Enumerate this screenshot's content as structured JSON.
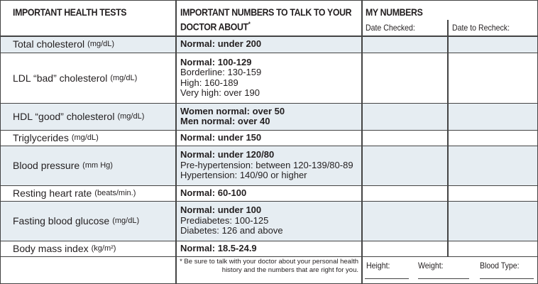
{
  "header": {
    "col1": "IMPORTANT HEALTH TESTS",
    "col2": "IMPORTANT NUMBERS TO TALK TO YOUR DOCTOR ABOUT",
    "col2_marker": "*",
    "col3": "MY NUMBERS",
    "date_checked": "Date Checked:",
    "date_recheck": "Date to Recheck:"
  },
  "table": {
    "rows": [
      {
        "test": "Total cholesterol",
        "unit": "(mg/dL)",
        "bold": [
          "Normal: under 200"
        ],
        "plain": []
      },
      {
        "test": "LDL “bad” cholesterol",
        "unit": "(mg/dL)",
        "bold": [
          "Normal: 100-129"
        ],
        "plain": [
          "Borderline: 130-159",
          "High: 160-189",
          "Very high: over 190"
        ]
      },
      {
        "test": "HDL “good” cholesterol",
        "unit": "(mg/dL)",
        "bold": [
          "Women normal: over 50",
          "Men normal: over 40"
        ],
        "plain": []
      },
      {
        "test": "Triglycerides",
        "unit": "(mg/dL)",
        "bold": [
          "Normal: under 150"
        ],
        "plain": []
      },
      {
        "test": "Blood pressure",
        "unit": "(mm Hg)",
        "bold": [
          "Normal: under 120/80"
        ],
        "plain": [
          "Pre-hypertension: between 120-139/80-89",
          "Hypertension: 140/90 or higher"
        ]
      },
      {
        "test": "Resting heart rate",
        "unit": "(beats/min.)",
        "bold": [
          "Normal: 60-100"
        ],
        "plain": []
      },
      {
        "test": "Fasting blood glucose",
        "unit": "(mg/dL)",
        "bold": [
          "Normal: under 100"
        ],
        "plain": [
          "Prediabetes: 100-125",
          "Diabetes: 126 and above"
        ]
      },
      {
        "test": "Body mass index",
        "unit": "(kg/m²)",
        "bold": [
          "Normal: 18.5-24.9"
        ],
        "plain": []
      }
    ]
  },
  "footer": {
    "note": "* Be sure to talk with your doctor about your personal health history and the numbers that are right for you.",
    "height": "Height:",
    "weight": "Weight:",
    "blood_type": "Blood Type:"
  }
}
